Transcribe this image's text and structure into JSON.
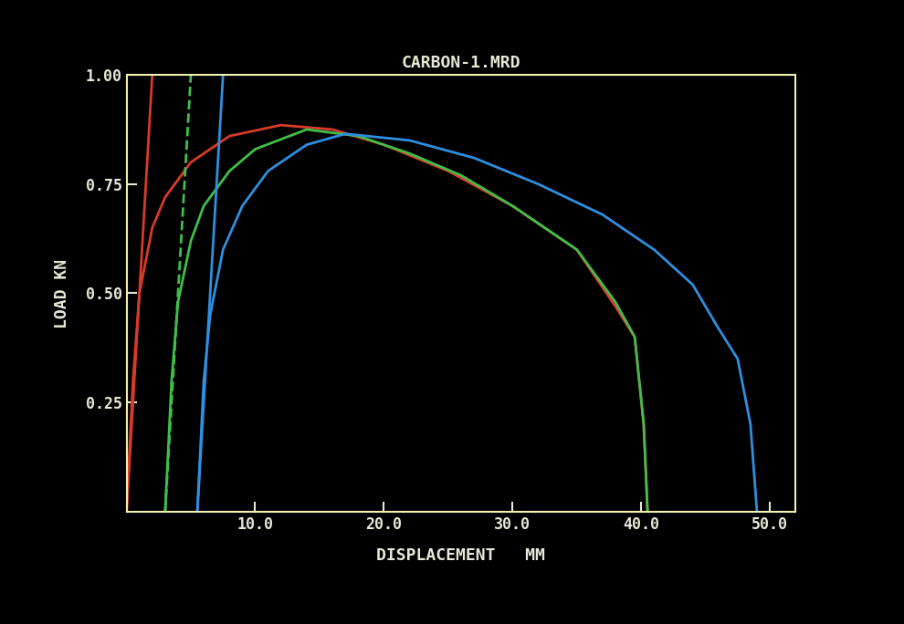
{
  "chart_data": {
    "type": "line",
    "title": "CARBON-1.MRD",
    "x_label": "DISPLACEMENT   MM",
    "y_label": "LOAD KN",
    "xlim": [
      0,
      52
    ],
    "ylim": [
      0,
      1.0
    ],
    "xticks": [
      {
        "value": 10,
        "label": "10.0"
      },
      {
        "value": 20,
        "label": "20.0"
      },
      {
        "value": 30,
        "label": "30.0"
      },
      {
        "value": 40,
        "label": "40.0"
      },
      {
        "value": 50,
        "label": "50.0"
      }
    ],
    "yticks": [
      {
        "value": 0.25,
        "label": "0.25"
      },
      {
        "value": 0.5,
        "label": "0.50"
      },
      {
        "value": 0.75,
        "label": "0.75"
      },
      {
        "value": 1.0,
        "label": "1.00"
      }
    ],
    "grid": false,
    "series": [
      {
        "color": "#d83a2a",
        "x": [
          0,
          0.5,
          1,
          2,
          3,
          5,
          8,
          12,
          16,
          20,
          25,
          30,
          35,
          38,
          39.5,
          40.2,
          40.5
        ],
        "values": [
          0,
          0.3,
          0.5,
          0.65,
          0.72,
          0.8,
          0.86,
          0.885,
          0.875,
          0.84,
          0.78,
          0.7,
          0.6,
          0.47,
          0.4,
          0.2,
          0
        ]
      },
      {
        "color": "#d83a2a",
        "x": [
          0,
          2
        ],
        "values": [
          0,
          1.0
        ]
      },
      {
        "color": "#3fbf4a",
        "x": [
          3,
          3.5,
          4,
          5,
          6,
          8,
          10,
          14,
          18,
          22,
          26,
          30,
          35,
          38,
          39.5,
          40.2,
          40.5
        ],
        "values": [
          0,
          0.3,
          0.48,
          0.62,
          0.7,
          0.78,
          0.83,
          0.875,
          0.86,
          0.82,
          0.77,
          0.7,
          0.6,
          0.48,
          0.4,
          0.2,
          0
        ]
      },
      {
        "color": "#3fbf4a",
        "line_style": "dashed",
        "x": [
          3,
          5
        ],
        "values": [
          0,
          1.0
        ]
      },
      {
        "color": "#2f8fe0",
        "x": [
          5.5,
          6,
          6.5,
          7.5,
          9,
          11,
          14,
          17,
          22,
          27,
          32,
          37,
          41,
          44,
          46,
          47.5,
          48.5,
          49
        ],
        "values": [
          0,
          0.3,
          0.45,
          0.6,
          0.7,
          0.78,
          0.84,
          0.865,
          0.85,
          0.81,
          0.75,
          0.68,
          0.6,
          0.52,
          0.42,
          0.35,
          0.2,
          0
        ]
      },
      {
        "color": "#2f8fe0",
        "x": [
          5.5,
          7.5
        ],
        "values": [
          0,
          1.0
        ]
      }
    ]
  }
}
